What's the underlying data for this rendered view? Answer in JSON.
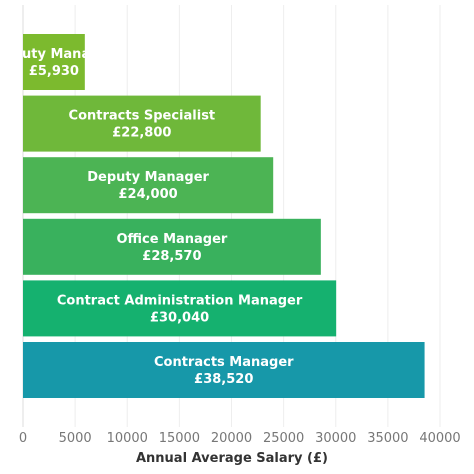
{
  "chart_data": {
    "type": "bar",
    "orientation": "horizontal",
    "xlabel": "Annual Average Salary (£)",
    "xlim": [
      0,
      40000
    ],
    "xticks": [
      0,
      5000,
      10000,
      15000,
      20000,
      25000,
      30000,
      35000,
      40000
    ],
    "xtick_labels": [
      "0",
      "5000",
      "10000",
      "15000",
      "20000",
      "25000",
      "30000",
      "35000",
      "40000"
    ],
    "grid": "vertical",
    "bars": [
      {
        "category": "Deputy Manager",
        "value": 5930,
        "value_label": "£5,930",
        "color": "#7cba2e"
      },
      {
        "category": "Contracts Specialist",
        "value": 22800,
        "value_label": "£22,800",
        "color": "#6fb83a"
      },
      {
        "category": "Deputy Manager",
        "value": 24000,
        "value_label": "£24,000",
        "color": "#4cb454"
      },
      {
        "category": "Office Manager",
        "value": 28570,
        "value_label": "£28,570",
        "color": "#39b15d"
      },
      {
        "category": "Contract Administration Manager",
        "value": 30040,
        "value_label": "£30,040",
        "color": "#15b16f"
      },
      {
        "category": "Contracts Manager",
        "value": 38520,
        "value_label": "£38,520",
        "color": "#1798a9"
      }
    ]
  }
}
